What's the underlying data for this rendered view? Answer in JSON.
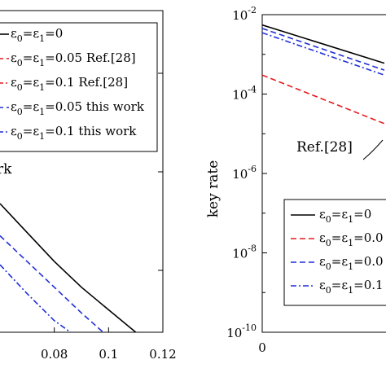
{
  "chart_data": [
    {
      "type": "line",
      "panel": "left",
      "xlabel": "",
      "ylabel": "",
      "x_ticks": [
        "0.08",
        "0.1",
        "0.12"
      ],
      "xlim": [
        0.06,
        0.12
      ],
      "grid": false,
      "legend_position": "top-right",
      "colors": {
        "black": "#000000",
        "red": "#e41a1c",
        "blue": "#1f2fd6"
      },
      "annotation_fragment": "rk",
      "series": [
        {
          "name": "ε0=ε1=0",
          "legend_parts": [
            "ε",
            "0",
            "=ε",
            "1",
            "=0"
          ],
          "color": "#000000",
          "dash": "solid",
          "x": [
            0.06,
            0.07,
            0.08,
            0.09,
            0.1,
            0.11
          ],
          "y": [
            0.2,
            0.155,
            0.11,
            0.07,
            0.035,
            0.0
          ]
        },
        {
          "name": "ε0=ε1=0.05 Ref.[28]",
          "legend_parts": [
            "ε",
            "0",
            "=ε",
            "1",
            "=0.05 Ref.[28]"
          ],
          "color": "#e41a1c",
          "dash": "dashed",
          "x": [],
          "y": []
        },
        {
          "name": "ε0=ε1=0.1 Ref.[28]",
          "legend_parts": [
            "ε",
            "0",
            "=ε",
            "1",
            "=0.1 Ref.[28]"
          ],
          "color": "#e41a1c",
          "dash": "dashdot",
          "x": [],
          "y": []
        },
        {
          "name": "ε0=ε1=0.05 this work",
          "legend_parts": [
            "ε",
            "0",
            "=ε",
            "1",
            "=0.05 this work"
          ],
          "color": "#1f2fd6",
          "dash": "dashed",
          "x": [
            0.06,
            0.07,
            0.08,
            0.09,
            0.098
          ],
          "y": [
            0.15,
            0.11,
            0.07,
            0.03,
            0.0
          ]
        },
        {
          "name": "ε0=ε1=0.1 this work",
          "legend_parts": [
            "ε",
            "0",
            "=ε",
            "1",
            "=0.1 this work"
          ],
          "color": "#1f2fd6",
          "dash": "dashdot",
          "x": [
            0.06,
            0.07,
            0.08,
            0.086
          ],
          "y": [
            0.105,
            0.06,
            0.018,
            0.0
          ]
        }
      ]
    },
    {
      "type": "line",
      "panel": "right",
      "xlabel": "",
      "ylabel": "key rate",
      "y_scale": "log",
      "y_ticks": [
        "10-2",
        "10-4",
        "10-6",
        "10-8",
        "10-10"
      ],
      "y_tick_parts": [
        [
          "10",
          "-2"
        ],
        [
          "10",
          "-4"
        ],
        [
          "10",
          "-6"
        ],
        [
          "10",
          "-8"
        ],
        [
          "10",
          "-10"
        ]
      ],
      "ylim": [
        1e-10,
        0.01
      ],
      "x_ticks": [
        "0"
      ],
      "grid": false,
      "legend_position": "bottom-right",
      "annotation": "Ref.[28]",
      "series": [
        {
          "name": "ε0=ε1=0",
          "legend_parts": [
            "ε",
            "0",
            "=ε",
            "1",
            "=0"
          ],
          "color": "#000000",
          "dash": "solid",
          "x": [
            0,
            1
          ],
          "y": [
            0.0055,
            0.0006
          ]
        },
        {
          "name": "ε0=ε1=0.0",
          "legend_parts": [
            "ε",
            "0",
            "=ε",
            "1",
            "=0.0"
          ],
          "color": "#e41a1c",
          "dash": "dashed",
          "x": [
            0,
            1
          ],
          "y": [
            0.0003,
            1.8e-05
          ]
        },
        {
          "name": "ε0=ε1=0.0",
          "legend_parts": [
            "ε",
            "0",
            "=ε",
            "1",
            "=0.0"
          ],
          "color": "#1f2fd6",
          "dash": "dashed",
          "x": [
            0,
            1
          ],
          "y": [
            0.0045,
            0.0004
          ]
        },
        {
          "name": "ε0=ε1=0.1",
          "legend_parts": [
            "ε",
            "0",
            "=ε",
            "1",
            "=0.1"
          ],
          "color": "#1f2fd6",
          "dash": "dashdot",
          "x": [
            0,
            1
          ],
          "y": [
            0.0035,
            0.0003
          ]
        }
      ]
    }
  ]
}
